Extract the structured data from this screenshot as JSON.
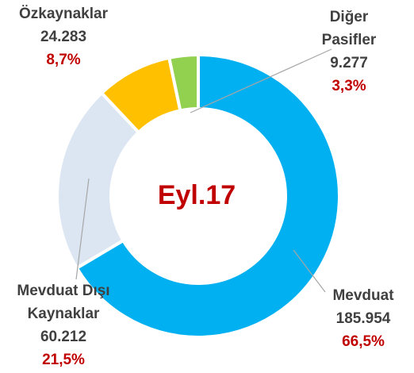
{
  "chart_data": {
    "type": "donut",
    "center_label": "Eyl.17",
    "categories": [
      "Mevduat",
      "Mevduat Dışı Kaynaklar",
      "Özkaynaklar",
      "Diğer Pasifler"
    ],
    "values": [
      185954,
      60212,
      24283,
      9277
    ],
    "value_labels": [
      "185.954",
      "60.212",
      "24.283",
      "9.277"
    ],
    "percentages": [
      66.5,
      21.5,
      8.7,
      3.3
    ],
    "percent_labels": [
      "66,5%",
      "21,5%",
      "8,7%",
      "3,3%"
    ],
    "colors": [
      "#00b0f0",
      "#dce6f2",
      "#ffc000",
      "#92d050"
    ]
  }
}
